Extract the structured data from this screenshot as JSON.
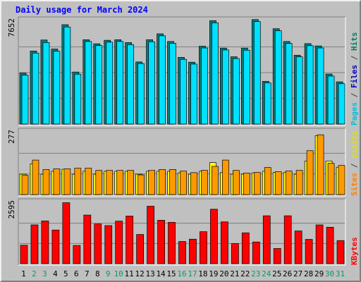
{
  "title": "Daily usage for March 2024",
  "chart_data": [
    {
      "type": "bar",
      "panel": "top",
      "max_label": "7652",
      "ylim": [
        0,
        7652
      ],
      "legend": [
        {
          "text": "Pages",
          "color": "#00c0e0"
        },
        {
          "text": " / ",
          "color": "#404040"
        },
        {
          "text": "Files",
          "color": "#0000c0"
        },
        {
          "text": " / ",
          "color": "#404040"
        },
        {
          "text": "Hits",
          "color": "#008060"
        }
      ],
      "categories": [
        "1",
        "2",
        "3",
        "4",
        "5",
        "6",
        "7",
        "8",
        "9",
        "10",
        "11",
        "12",
        "13",
        "14",
        "15",
        "16",
        "17",
        "18",
        "19",
        "20",
        "21",
        "22",
        "23",
        "24",
        "25",
        "26",
        "27",
        "28",
        "29",
        "30",
        "31"
      ],
      "weekend_days": [
        2,
        3,
        9,
        10,
        16,
        17,
        23,
        24,
        30,
        31
      ],
      "series": [
        {
          "name": "Hits",
          "color": "#008080",
          "values": [
            3790,
            5430,
            6250,
            5580,
            7390,
            3870,
            6270,
            5970,
            6230,
            6270,
            6060,
            4620,
            6270,
            6710,
            6140,
            4960,
            4600,
            5790,
            7690,
            5650,
            5000,
            5650,
            7770,
            3180,
            7090,
            6140,
            5120,
            5980,
            5810,
            3720,
            3140
          ]
        },
        {
          "name": "Files",
          "color": "#00e0ff",
          "values": [
            3640,
            5280,
            6060,
            5420,
            7220,
            3710,
            6140,
            5840,
            6090,
            6140,
            5910,
            4500,
            6120,
            6560,
            6010,
            4810,
            4460,
            5660,
            7530,
            5510,
            4870,
            5490,
            7620,
            3070,
            6940,
            6000,
            5000,
            5830,
            5660,
            3570,
            3000
          ]
        }
      ]
    },
    {
      "type": "bar",
      "panel": "middle",
      "max_label": "277",
      "ylim": [
        0,
        277
      ],
      "legend": [
        {
          "text": "Sites",
          "color": "#ff8000"
        },
        {
          "text": " / ",
          "color": "#404040"
        },
        {
          "text": "Visits",
          "color": "#e0e000"
        }
      ],
      "categories": [
        "1",
        "2",
        "3",
        "4",
        "5",
        "6",
        "7",
        "8",
        "9",
        "10",
        "11",
        "12",
        "13",
        "14",
        "15",
        "16",
        "17",
        "18",
        "19",
        "20",
        "21",
        "22",
        "23",
        "24",
        "25",
        "26",
        "27",
        "28",
        "29",
        "30",
        "31"
      ],
      "series": [
        {
          "name": "Visits",
          "color": "#ffff00",
          "values": [
            91,
            137,
            91,
            104,
            113,
            91,
            104,
            91,
            104,
            104,
            104,
            91,
            104,
            104,
            104,
            97,
            91,
            104,
            143,
            99,
            91,
            91,
            97,
            104,
            99,
            99,
            91,
            150,
            263,
            150,
            122
          ]
        },
        {
          "name": "Sites",
          "color": "#ff9900",
          "values": [
            86,
            154,
            112,
            115,
            115,
            118,
            118,
            108,
            108,
            108,
            108,
            88,
            108,
            112,
            112,
            105,
            98,
            108,
            126,
            154,
            108,
            96,
            99,
            121,
            102,
            105,
            108,
            196,
            267,
            140,
            130
          ]
        }
      ]
    },
    {
      "type": "bar",
      "panel": "bottom",
      "max_label": "2595",
      "ylim": [
        0,
        2595
      ],
      "legend": [
        {
          "text": "KBytes",
          "color": "#ff0000"
        }
      ],
      "categories": [
        "1",
        "2",
        "3",
        "4",
        "5",
        "6",
        "7",
        "8",
        "9",
        "10",
        "11",
        "12",
        "13",
        "14",
        "15",
        "16",
        "17",
        "18",
        "19",
        "20",
        "21",
        "22",
        "23",
        "24",
        "25",
        "26",
        "27",
        "28",
        "29",
        "30",
        "31"
      ],
      "series": [
        {
          "name": "KBytes",
          "color": "#ff0000",
          "values": [
            790,
            1660,
            1830,
            1440,
            2610,
            780,
            2080,
            1700,
            1630,
            1820,
            2040,
            1250,
            2460,
            1860,
            1770,
            950,
            1050,
            1370,
            2330,
            1790,
            860,
            1320,
            930,
            2050,
            650,
            2050,
            1400,
            1040,
            1660,
            1560,
            990
          ]
        }
      ]
    }
  ]
}
